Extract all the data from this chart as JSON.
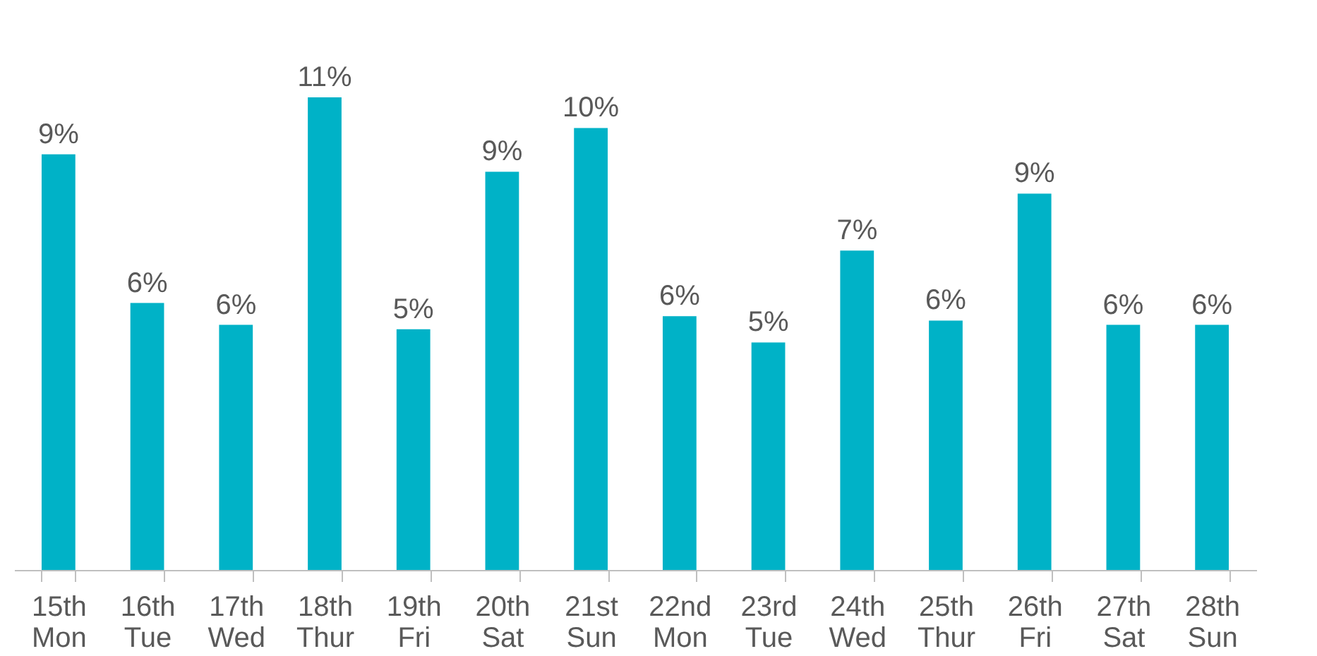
{
  "chart_data": {
    "type": "bar",
    "categories": [
      "15th\nMon",
      "16th\nTue",
      "17th\nWed",
      "18th\nThur",
      "19th\nFri",
      "20th\nSat",
      "21st\nSun",
      "22nd\nMon",
      "23rd\nTue",
      "24th\nWed",
      "25th\nThur",
      "26th\nFri",
      "27th\nSat",
      "28th\nSun"
    ],
    "values": [
      9.5,
      6.1,
      5.6,
      10.8,
      5.5,
      9.1,
      10.1,
      5.8,
      5.2,
      7.3,
      5.7,
      8.6,
      5.6,
      5.6
    ],
    "value_labels": [
      "9%",
      "6%",
      "6%",
      "11%",
      "5%",
      "9%",
      "10%",
      "6%",
      "5%",
      "7%",
      "6%",
      "9%",
      "6%",
      "6%"
    ],
    "color": "#00b2c7",
    "grid": false
  }
}
